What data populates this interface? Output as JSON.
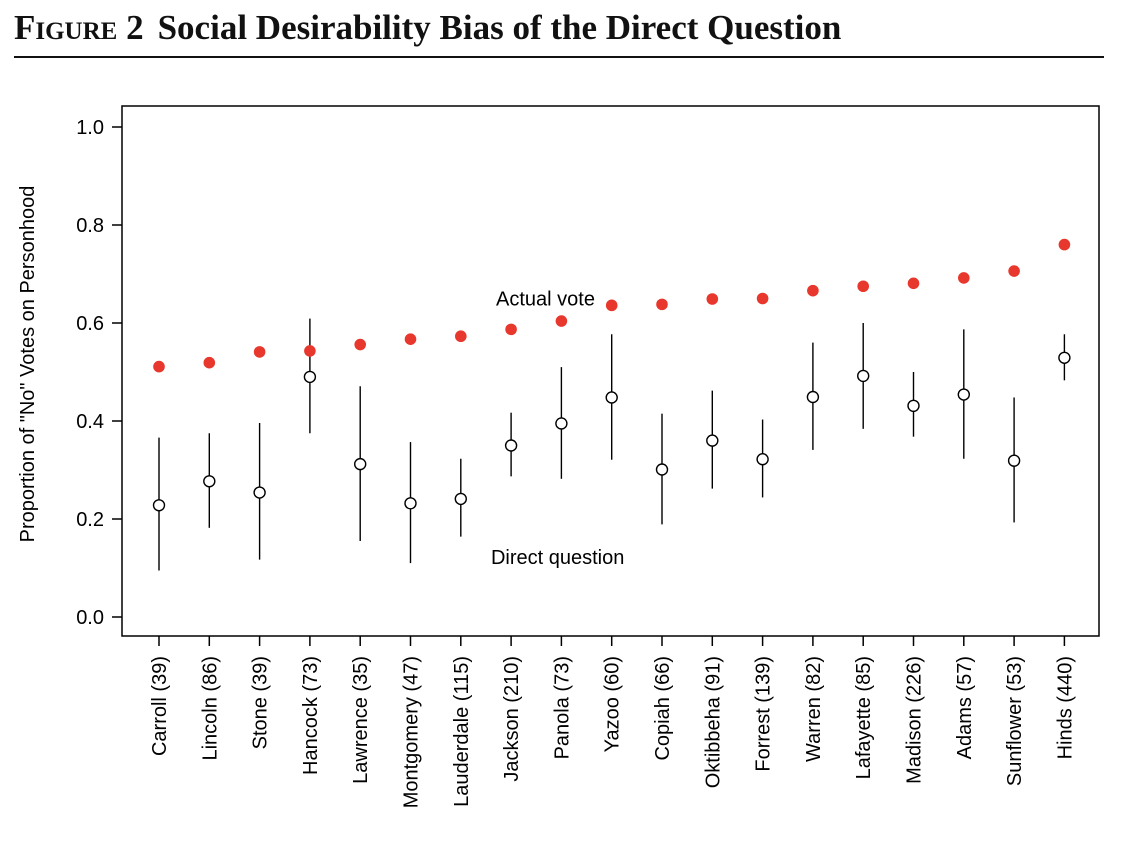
{
  "figure": {
    "label": "Figure 2",
    "title": "Social Desirability Bias of the Direct Question"
  },
  "chart_data": {
    "type": "scatter",
    "title": "",
    "xlabel": "",
    "ylabel": "Proportion of \"No\" Votes on Personhood",
    "ylim": [
      0.0,
      1.0
    ],
    "y_ticks": [
      "0.0",
      "0.2",
      "0.4",
      "0.6",
      "0.8",
      "1.0"
    ],
    "y_tick_values": [
      0.0,
      0.2,
      0.4,
      0.6,
      0.8,
      1.0
    ],
    "categories": [
      "Carroll (39)",
      "Lincoln (86)",
      "Stone (39)",
      "Hancock (73)",
      "Lawrence (35)",
      "Montgomery (47)",
      "Lauderdale (115)",
      "Jackson (210)",
      "Panola (73)",
      "Yazoo (60)",
      "Copiah (66)",
      "Oktibbeha (91)",
      "Forrest (139)",
      "Warren (82)",
      "Lafayette (85)",
      "Madison (226)",
      "Adams (57)",
      "Sunflower (53)",
      "Hinds (440)"
    ],
    "grid": false,
    "series": [
      {
        "name": "Actual vote",
        "color": "#e8372c",
        "marker": "filled-circle",
        "values": [
          0.511,
          0.519,
          0.541,
          0.543,
          0.556,
          0.567,
          0.573,
          0.587,
          0.604,
          0.636,
          0.638,
          0.649,
          0.65,
          0.666,
          0.675,
          0.681,
          0.692,
          0.706,
          0.76
        ]
      },
      {
        "name": "Direct question",
        "color": "#000000",
        "marker": "open-circle",
        "values": [
          0.228,
          0.277,
          0.254,
          0.49,
          0.312,
          0.232,
          0.241,
          0.35,
          0.395,
          0.448,
          0.301,
          0.36,
          0.322,
          0.449,
          0.492,
          0.431,
          0.454,
          0.319,
          0.529
        ],
        "lower": [
          0.095,
          0.182,
          0.117,
          0.375,
          0.155,
          0.11,
          0.164,
          0.287,
          0.282,
          0.321,
          0.189,
          0.262,
          0.244,
          0.341,
          0.384,
          0.368,
          0.323,
          0.193,
          0.483
        ],
        "upper": [
          0.366,
          0.375,
          0.396,
          0.609,
          0.471,
          0.357,
          0.323,
          0.417,
          0.51,
          0.577,
          0.415,
          0.462,
          0.403,
          0.56,
          0.6,
          0.5,
          0.587,
          0.448,
          0.577
        ]
      }
    ],
    "annotations": [
      {
        "text": "Actual vote",
        "x_index": 6.7,
        "y": 0.65
      },
      {
        "text": "Direct question",
        "x_index": 6.6,
        "y": 0.122
      }
    ]
  }
}
